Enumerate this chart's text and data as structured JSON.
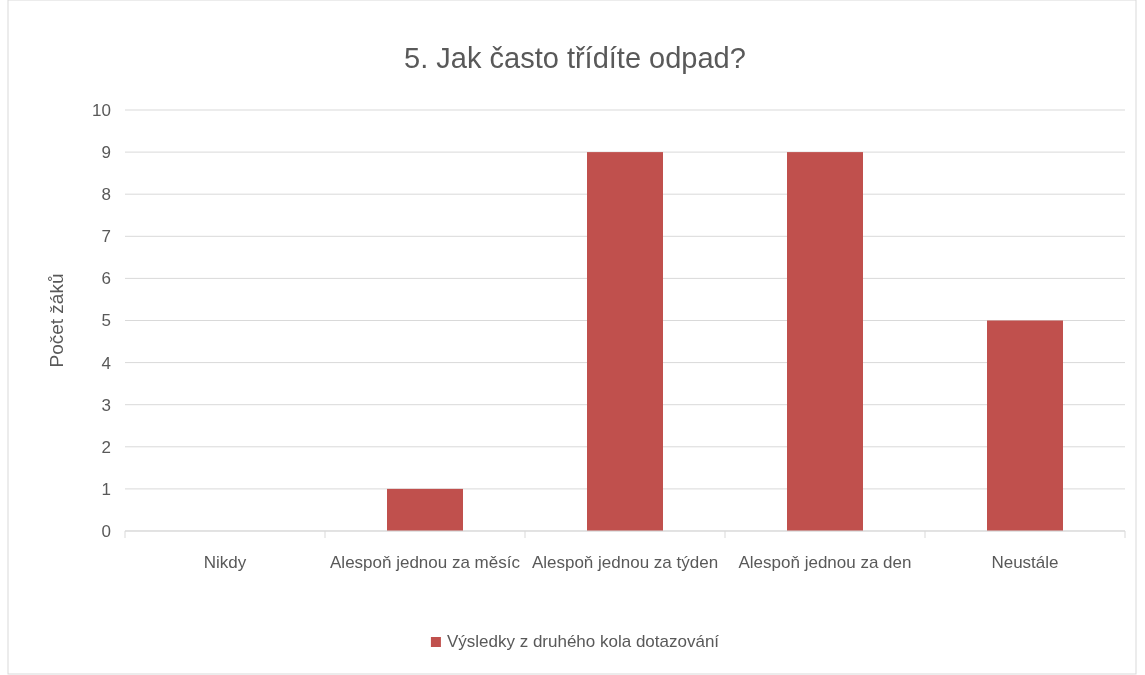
{
  "chart_data": {
    "type": "bar",
    "title": "5. Jak často třídíte odpad?",
    "ylabel": "Počet žáků",
    "categories": [
      "Nikdy",
      "Alespoň jednou za měsíc",
      "Alespoň jednou za týden",
      "Alespoň jednou za den",
      "Neustále"
    ],
    "series": [
      {
        "name": "Výsledky z druhého kola dotazování",
        "color": "#c0504d",
        "values": [
          0,
          1,
          9,
          9,
          5
        ]
      }
    ],
    "ylim": [
      0,
      10
    ],
    "yticks": [
      0,
      1,
      2,
      3,
      4,
      5,
      6,
      7,
      8,
      9,
      10
    ],
    "grid": "y",
    "legend": "bottom"
  }
}
